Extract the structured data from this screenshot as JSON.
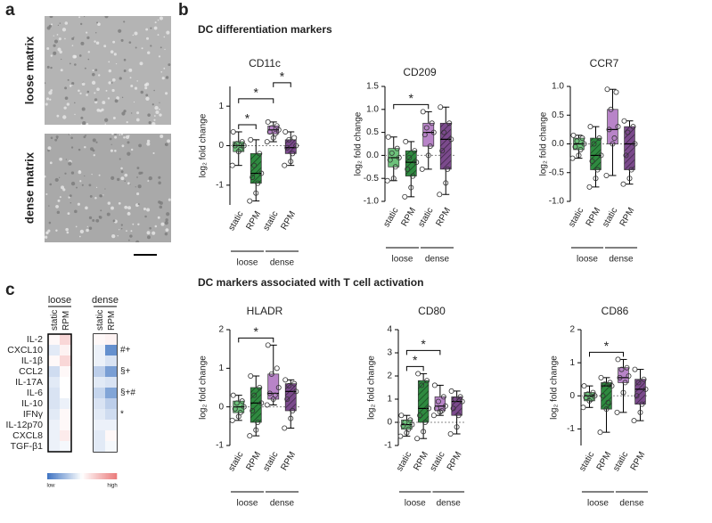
{
  "letters": {
    "a": "a",
    "b": "b",
    "c": "c"
  },
  "images": {
    "loose": "loose matrix",
    "dense": "dense matrix"
  },
  "sections": [
    "DC differentiation markers",
    "DC markers associated with T cell activation"
  ],
  "chart_data": [
    {
      "type": "box",
      "title": "CD11c",
      "ylabel": "log₂ fold change",
      "categories": [
        "static",
        "RPM",
        "static",
        "RPM"
      ],
      "groups": [
        "loose",
        "dense"
      ],
      "colors": [
        "#6cc17a",
        "#2f8a40",
        "#b884c8",
        "#7b4a8c"
      ],
      "hatch": [
        false,
        true,
        false,
        true
      ],
      "ylim": [
        -1.5,
        1.5
      ],
      "yticks": [
        -1,
        0,
        1
      ],
      "boxes": [
        {
          "min": -0.5,
          "q1": -0.15,
          "median": 0,
          "q3": 0.1,
          "max": 0.35,
          "points": [
            0.35,
            0.1,
            0.05,
            0,
            0,
            -0.1,
            -0.15,
            -0.5
          ]
        },
        {
          "min": -1.4,
          "q1": -0.95,
          "median": -0.7,
          "q3": -0.2,
          "max": 0.15,
          "points": [
            0.15,
            -0.2,
            -0.5,
            -0.7,
            -0.8,
            -0.95,
            -1.2,
            -1.4
          ]
        },
        {
          "min": 0.1,
          "q1": 0.3,
          "median": 0.4,
          "q3": 0.5,
          "max": 0.6,
          "points": [
            0.6,
            0.5,
            0.45,
            0.4,
            0.35,
            0.3,
            0.2,
            0.1
          ]
        },
        {
          "min": -0.5,
          "q1": -0.2,
          "median": -0.05,
          "q3": 0.15,
          "max": 0.35,
          "points": [
            0.35,
            0.2,
            0.15,
            0,
            -0.05,
            -0.2,
            -0.4,
            -0.5
          ]
        }
      ],
      "brackets": [
        {
          "between": [
            0,
            1
          ],
          "label": "*"
        },
        {
          "between": [
            0,
            2
          ],
          "label": "*"
        },
        {
          "between": [
            2,
            3
          ],
          "label": "*"
        }
      ]
    },
    {
      "type": "box",
      "title": "CD209",
      "ylabel": "log₂ fold change",
      "categories": [
        "static",
        "RPM",
        "static",
        "RPM"
      ],
      "groups": [
        "loose",
        "dense"
      ],
      "colors": [
        "#6cc17a",
        "#2f8a40",
        "#b884c8",
        "#7b4a8c"
      ],
      "hatch": [
        false,
        true,
        false,
        true
      ],
      "ylim": [
        -1,
        1.5
      ],
      "yticks": [
        {
          "value": -1,
          "label": "-1.0"
        },
        {
          "value": -0.5,
          "label": "-0.5"
        },
        {
          "value": 0,
          "label": "0.0"
        },
        {
          "value": 0.5,
          "label": "0.5"
        },
        {
          "value": 1,
          "label": "1.0"
        },
        {
          "value": 1.5,
          "label": "1.5"
        }
      ],
      "boxes": [
        {
          "min": -0.55,
          "q1": -0.25,
          "median": -0.05,
          "q3": 0.15,
          "max": 0.4,
          "points": [
            0.4,
            0.15,
            0.05,
            -0.05,
            -0.1,
            -0.25,
            -0.5,
            -0.55
          ]
        },
        {
          "min": -0.9,
          "q1": -0.45,
          "median": -0.15,
          "q3": 0.1,
          "max": 0.3,
          "points": [
            0.3,
            0.1,
            -0.05,
            -0.15,
            -0.3,
            -0.45,
            -0.7,
            -0.9
          ]
        },
        {
          "min": -0.3,
          "q1": 0.2,
          "median": 0.5,
          "q3": 0.7,
          "max": 0.95,
          "points": [
            0.95,
            0.7,
            0.6,
            0.5,
            0.45,
            0.2,
            0,
            -0.3
          ]
        },
        {
          "min": -0.85,
          "q1": -0.3,
          "median": 0.35,
          "q3": 0.7,
          "max": 1.05,
          "points": [
            1.05,
            0.7,
            0.5,
            0.35,
            0.1,
            -0.3,
            -0.6,
            -0.85
          ]
        }
      ],
      "brackets": [
        {
          "between": [
            0,
            2
          ],
          "label": "*"
        }
      ]
    },
    {
      "type": "box",
      "title": "CCR7",
      "ylabel": "log₂ fold change",
      "categories": [
        "static",
        "RPM",
        "static",
        "RPM"
      ],
      "groups": [
        "loose",
        "dense"
      ],
      "colors": [
        "#6cc17a",
        "#2f8a40",
        "#b884c8",
        "#7b4a8c"
      ],
      "hatch": [
        false,
        true,
        false,
        true
      ],
      "ylim": [
        -1,
        1
      ],
      "yticks": [
        {
          "value": -1,
          "label": "-1.0"
        },
        {
          "value": -0.5,
          "label": "-0.5"
        },
        {
          "value": 0,
          "label": "0.0"
        },
        {
          "value": 0.5,
          "label": "0.5"
        },
        {
          "value": 1,
          "label": "1.0"
        }
      ],
      "boxes": [
        {
          "min": -0.25,
          "q1": -0.1,
          "median": 0,
          "q3": 0.1,
          "max": 0.15,
          "points": [
            0.15,
            0.1,
            0.05,
            0,
            -0.05,
            -0.1,
            -0.2,
            -0.25
          ]
        },
        {
          "min": -0.75,
          "q1": -0.45,
          "median": -0.2,
          "q3": 0.1,
          "max": 0.3,
          "points": [
            0.3,
            0.1,
            0,
            -0.2,
            -0.3,
            -0.45,
            -0.6,
            -0.75
          ]
        },
        {
          "min": -0.55,
          "q1": 0,
          "median": 0.25,
          "q3": 0.6,
          "max": 0.95,
          "points": [
            0.95,
            0.9,
            0.6,
            0.3,
            0.25,
            0.1,
            0,
            -0.55
          ]
        },
        {
          "min": -0.7,
          "q1": -0.45,
          "median": 0,
          "q3": 0.3,
          "max": 0.4,
          "points": [
            0.4,
            0.3,
            0.2,
            0,
            -0.2,
            -0.45,
            -0.6,
            -0.7
          ]
        }
      ],
      "brackets": []
    },
    {
      "type": "box",
      "title": "HLADR",
      "ylabel": "log₂ fold change",
      "categories": [
        "static",
        "RPM",
        "static",
        "RPM"
      ],
      "groups": [
        "loose",
        "dense"
      ],
      "colors": [
        "#6cc17a",
        "#2f8a40",
        "#b884c8",
        "#7b4a8c"
      ],
      "hatch": [
        false,
        true,
        false,
        true
      ],
      "ylim": [
        -1,
        2
      ],
      "yticks": [
        -1,
        0,
        1,
        2
      ],
      "boxes": [
        {
          "min": -0.35,
          "q1": -0.15,
          "median": 0,
          "q3": 0.15,
          "max": 0.3,
          "points": [
            0.3,
            0.15,
            0.1,
            0,
            -0.05,
            -0.15,
            -0.25,
            -0.35
          ]
        },
        {
          "min": -0.75,
          "q1": -0.4,
          "median": 0.1,
          "q3": 0.5,
          "max": 0.8,
          "points": [
            0.8,
            0.5,
            0.3,
            0.1,
            -0.1,
            -0.4,
            -0.6,
            -0.75
          ]
        },
        {
          "min": 0.05,
          "q1": 0.2,
          "median": 0.35,
          "q3": 0.85,
          "max": 1.6,
          "points": [
            1.6,
            1.0,
            0.85,
            0.5,
            0.35,
            0.3,
            0.2,
            0.05
          ]
        },
        {
          "min": -0.55,
          "q1": -0.1,
          "median": 0.4,
          "q3": 0.6,
          "max": 0.7,
          "points": [
            0.7,
            0.6,
            0.55,
            0.4,
            0.2,
            -0.1,
            -0.3,
            -0.55
          ]
        }
      ],
      "brackets": [
        {
          "between": [
            0,
            2
          ],
          "label": "*"
        }
      ]
    },
    {
      "type": "box",
      "title": "CD80",
      "ylabel": "log₂ fold change",
      "categories": [
        "static",
        "RPM",
        "static",
        "RPM"
      ],
      "groups": [
        "loose",
        "dense"
      ],
      "colors": [
        "#6cc17a",
        "#2f8a40",
        "#b884c8",
        "#7b4a8c"
      ],
      "hatch": [
        false,
        true,
        false,
        true
      ],
      "ylim": [
        -1,
        4
      ],
      "yticks": [
        -1,
        0,
        1,
        2,
        3,
        4
      ],
      "boxes": [
        {
          "min": -0.6,
          "q1": -0.3,
          "median": -0.1,
          "q3": 0.1,
          "max": 0.3,
          "points": [
            0.3,
            0.1,
            0,
            -0.1,
            -0.15,
            -0.3,
            -0.45,
            -0.6
          ]
        },
        {
          "min": -0.7,
          "q1": 0,
          "median": 0.6,
          "q3": 1.8,
          "max": 2.1,
          "points": [
            2.1,
            1.8,
            1.6,
            0.6,
            0.3,
            0,
            -0.4,
            -0.7
          ]
        },
        {
          "min": 0.3,
          "q1": 0.5,
          "median": 0.7,
          "q3": 1.1,
          "max": 1.6,
          "points": [
            1.6,
            1.1,
            0.9,
            0.7,
            0.6,
            0.5,
            0.45,
            0.3
          ]
        },
        {
          "min": -0.5,
          "q1": 0.3,
          "median": 0.9,
          "q3": 1.1,
          "max": 1.35,
          "points": [
            1.35,
            1.1,
            1.0,
            0.9,
            0.6,
            0.3,
            -0.2,
            -0.5
          ]
        }
      ],
      "brackets": [
        {
          "between": [
            0,
            1
          ],
          "label": "*"
        },
        {
          "between": [
            0,
            2
          ],
          "label": "*"
        }
      ]
    },
    {
      "type": "box",
      "title": "CD86",
      "ylabel": "log₂ fold change",
      "categories": [
        "static",
        "RPM",
        "static",
        "RPM"
      ],
      "groups": [
        "loose",
        "dense"
      ],
      "colors": [
        "#6cc17a",
        "#2f8a40",
        "#b884c8",
        "#7b4a8c"
      ],
      "hatch": [
        false,
        true,
        false,
        true
      ],
      "ylim": [
        -1.5,
        2
      ],
      "yticks": [
        -1,
        0,
        1,
        2
      ],
      "boxes": [
        {
          "min": -0.35,
          "q1": -0.15,
          "median": 0,
          "q3": 0.1,
          "max": 0.3,
          "points": [
            0.3,
            0.1,
            0.05,
            0,
            -0.05,
            -0.1,
            -0.15,
            -0.35
          ]
        },
        {
          "min": -1.1,
          "q1": -0.4,
          "median": 0.3,
          "q3": 0.4,
          "max": 0.55,
          "points": [
            0.55,
            0.4,
            0.35,
            0.3,
            0,
            -0.2,
            -0.4,
            -1.1
          ]
        },
        {
          "min": -0.5,
          "q1": 0.4,
          "median": 0.55,
          "q3": 0.85,
          "max": 1.1,
          "points": [
            1.1,
            0.85,
            0.8,
            0.6,
            0.55,
            0.4,
            0.1,
            -0.5
          ]
        },
        {
          "min": -0.75,
          "q1": -0.25,
          "median": 0.2,
          "q3": 0.5,
          "max": 0.8,
          "points": [
            0.8,
            0.5,
            0.4,
            0.2,
            0,
            -0.25,
            -0.5,
            -0.75
          ]
        }
      ],
      "brackets": [
        {
          "between": [
            0,
            2
          ],
          "label": "*"
        }
      ]
    },
    {
      "type": "heatmap",
      "groups": [
        "loose",
        "dense"
      ],
      "columns": [
        "static",
        "RPM",
        "static",
        "RPM"
      ],
      "rows": [
        "IL-2",
        "CXCL10",
        "IL-1β",
        "CCL2",
        "IL-17A",
        "IL-6",
        "IL-10",
        "IFNγ",
        "IL-12p70",
        "CXCL8",
        "TGF-β1"
      ],
      "values": [
        [
          0.05,
          0.3,
          0.05,
          0.1
        ],
        [
          -0.15,
          0.1,
          -0.1,
          -0.8
        ],
        [
          0.05,
          0.3,
          -0.1,
          -0.2
        ],
        [
          -0.25,
          0.05,
          -0.35,
          -0.7
        ],
        [
          -0.15,
          0,
          -0.15,
          -0.2
        ],
        [
          -0.2,
          0,
          -0.3,
          -0.65
        ],
        [
          -0.2,
          -0.1,
          -0.2,
          -0.35
        ],
        [
          -0.15,
          0.05,
          -0.15,
          -0.25
        ],
        [
          -0.1,
          0.05,
          -0.1,
          -0.1
        ],
        [
          -0.1,
          0.15,
          -0.15,
          0.05
        ],
        [
          -0.1,
          -0.05,
          -0.15,
          -0.05
        ]
      ],
      "row_notes": [
        null,
        "#+",
        null,
        "§+",
        null,
        "§+#",
        null,
        "*",
        null,
        null,
        null
      ],
      "vlim": [
        -1,
        1
      ],
      "low_color": "#3f74c2",
      "high_color": "#ea7a7a",
      "colorbar_labels": [
        "low",
        "high"
      ]
    }
  ]
}
